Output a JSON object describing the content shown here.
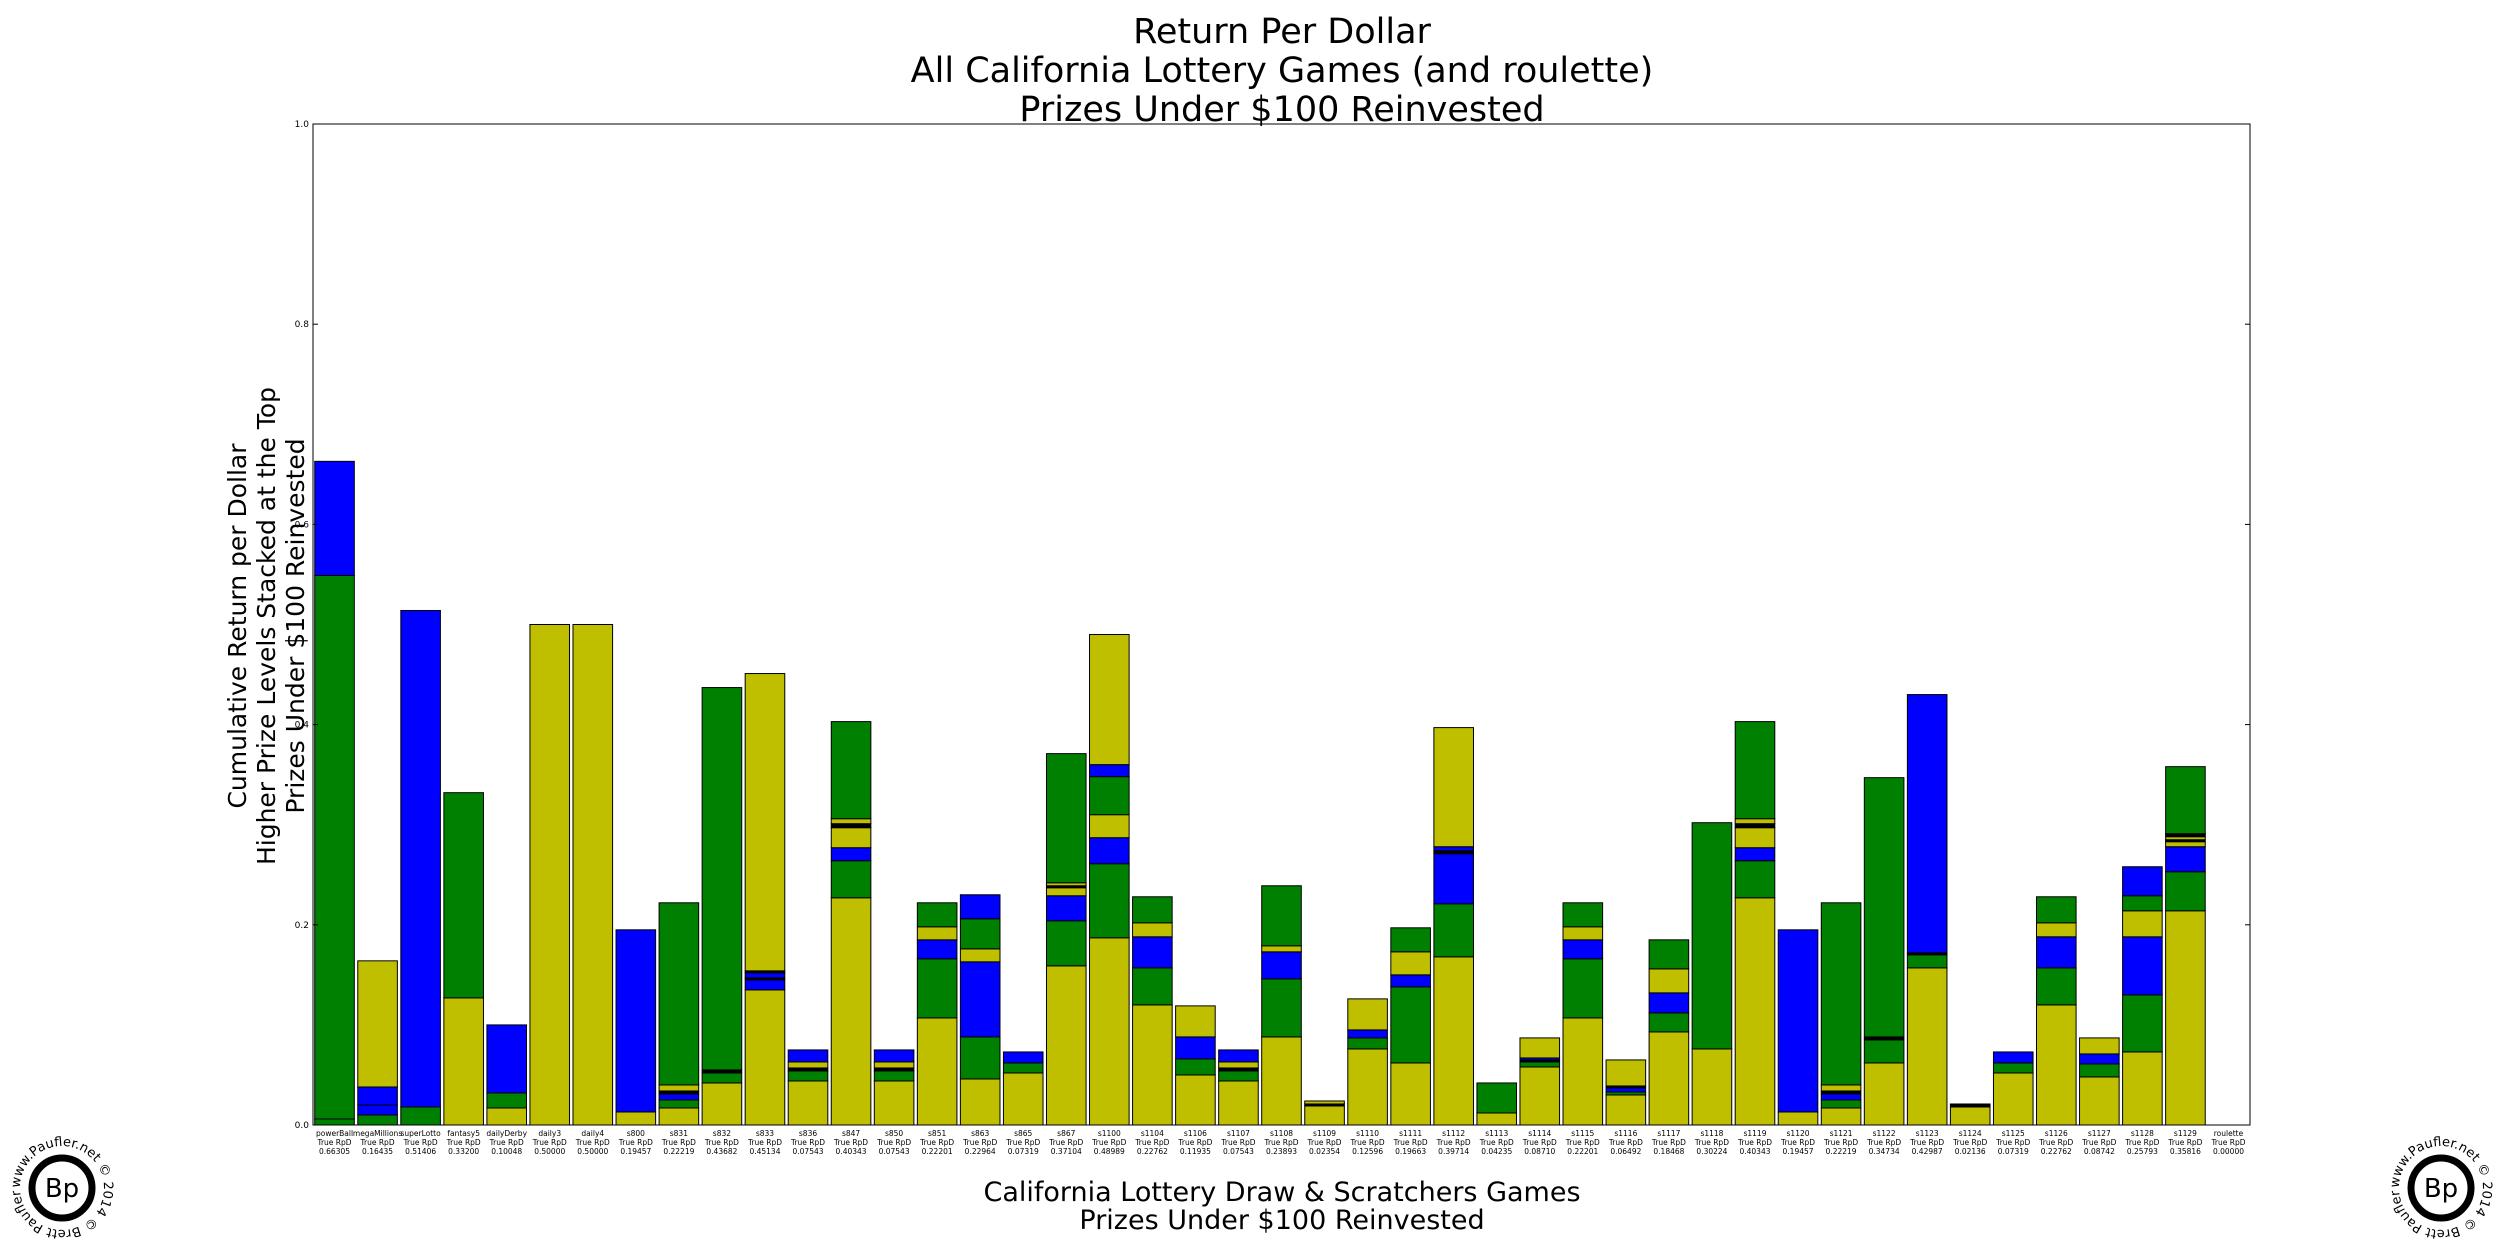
{
  "chart_data": {
    "type": "bar",
    "stacked": true,
    "title_lines": [
      "Return Per Dollar",
      "All California Lottery Games (and roulette)",
      "Prizes Under $100 Reinvested"
    ],
    "ylabel_lines": [
      "Cumulative Return per Dollar",
      "Higher Prize Levels Stacked at the Top",
      "Prizes Under $100 Reinvested"
    ],
    "xlabel_lines": [
      "California Lottery Draw & Scratchers Games",
      "Prizes Under $100 Reinvested"
    ],
    "ylim": [
      0,
      1
    ],
    "yticks": [
      "0.0",
      "0.2",
      "0.4",
      "0.6",
      "0.8",
      "1.0"
    ],
    "colors": {
      "y": "#bfbf00",
      "g": "#008000",
      "b": "#0000ff",
      "k": "#000000"
    },
    "grid": false,
    "categories": [
      {
        "name": "powerBall",
        "rpd_label": "True RpD",
        "rpd": "0.66305",
        "segments": [
          [
            "g",
            0.006
          ],
          [
            "g",
            0.543
          ],
          [
            "b",
            0.114
          ]
        ]
      },
      {
        "name": "megaMillions",
        "rpd_label": "True RpD",
        "rpd": "0.16435",
        "segments": [
          [
            "g",
            0.01
          ],
          [
            "b",
            0.01
          ],
          [
            "b",
            0.018
          ],
          [
            "y",
            0.126
          ]
        ]
      },
      {
        "name": "superLotto",
        "rpd_label": "True RpD",
        "rpd": "0.51406",
        "segments": [
          [
            "g",
            0.018
          ],
          [
            "b",
            0.496
          ]
        ]
      },
      {
        "name": "fantasy5",
        "rpd_label": "True RpD",
        "rpd": "0.33200",
        "segments": [
          [
            "y",
            0.127
          ],
          [
            "g",
            0.205
          ]
        ]
      },
      {
        "name": "dailyDerby",
        "rpd_label": "True RpD",
        "rpd": "0.10048",
        "segments": [
          [
            "y",
            0.017
          ],
          [
            "g",
            0.015
          ],
          [
            "b",
            0.068
          ]
        ]
      },
      {
        "name": "daily3",
        "rpd_label": "True RpD",
        "rpd": "0.50000",
        "segments": [
          [
            "y",
            0.5
          ]
        ]
      },
      {
        "name": "daily4",
        "rpd_label": "True RpD",
        "rpd": "0.50000",
        "segments": [
          [
            "y",
            0.5
          ]
        ]
      },
      {
        "name": "s800",
        "rpd_label": "True RpD",
        "rpd": "0.19457",
        "segments": [
          [
            "y",
            0.013
          ],
          [
            "b",
            0.182
          ]
        ]
      },
      {
        "name": "s831",
        "rpd_label": "True RpD",
        "rpd": "0.22219",
        "segments": [
          [
            "y",
            0.017
          ],
          [
            "g",
            0.008
          ],
          [
            "b",
            0.006
          ],
          [
            "k",
            0.003
          ],
          [
            "y",
            0.006
          ],
          [
            "g",
            0.182
          ]
        ]
      },
      {
        "name": "s832",
        "rpd_label": "True RpD",
        "rpd": "0.43682",
        "segments": [
          [
            "y",
            0.042
          ],
          [
            "g",
            0.01
          ],
          [
            "k",
            0.003
          ],
          [
            "g",
            0.382
          ]
        ]
      },
      {
        "name": "s833",
        "rpd_label": "True RpD",
        "rpd": "0.45134",
        "segments": [
          [
            "y",
            0.135
          ],
          [
            "b",
            0.01
          ],
          [
            "k",
            0.002
          ],
          [
            "b",
            0.005
          ],
          [
            "k",
            0.002
          ],
          [
            "y",
            0.297
          ]
        ]
      },
      {
        "name": "s836",
        "rpd_label": "True RpD",
        "rpd": "0.07543",
        "segments": [
          [
            "y",
            0.044
          ],
          [
            "g",
            0.01
          ],
          [
            "k",
            0.003
          ],
          [
            "y",
            0.006
          ],
          [
            "b",
            0.012
          ]
        ]
      },
      {
        "name": "s847",
        "rpd_label": "True RpD",
        "rpd": "0.40343",
        "segments": [
          [
            "y",
            0.227
          ],
          [
            "g",
            0.037
          ],
          [
            "b",
            0.013
          ],
          [
            "y",
            0.02
          ],
          [
            "k",
            0.004
          ],
          [
            "y",
            0.005
          ],
          [
            "g",
            0.097
          ]
        ]
      },
      {
        "name": "s850",
        "rpd_label": "True RpD",
        "rpd": "0.07543",
        "segments": [
          [
            "y",
            0.044
          ],
          [
            "g",
            0.01
          ],
          [
            "k",
            0.003
          ],
          [
            "y",
            0.006
          ],
          [
            "b",
            0.012
          ]
        ]
      },
      {
        "name": "s851",
        "rpd_label": "True RpD",
        "rpd": "0.22201",
        "segments": [
          [
            "y",
            0.107
          ],
          [
            "g",
            0.059
          ],
          [
            "b",
            0.019
          ],
          [
            "y",
            0.013
          ],
          [
            "g",
            0.024
          ]
        ]
      },
      {
        "name": "s863",
        "rpd_label": "True RpD",
        "rpd": "0.22964",
        "segments": [
          [
            "y",
            0.046
          ],
          [
            "g",
            0.042
          ],
          [
            "b",
            0.075
          ],
          [
            "y",
            0.013
          ],
          [
            "g",
            0.03
          ],
          [
            "b",
            0.024
          ]
        ]
      },
      {
        "name": "s865",
        "rpd_label": "True RpD",
        "rpd": "0.07319",
        "segments": [
          [
            "y",
            0.052
          ],
          [
            "g",
            0.01
          ],
          [
            "b",
            0.011
          ]
        ]
      },
      {
        "name": "s867",
        "rpd_label": "True RpD",
        "rpd": "0.37104",
        "segments": [
          [
            "y",
            0.159
          ],
          [
            "g",
            0.045
          ],
          [
            "b",
            0.025
          ],
          [
            "y",
            0.008
          ],
          [
            "k",
            0.002
          ],
          [
            "y",
            0.003
          ],
          [
            "g",
            0.129
          ]
        ]
      },
      {
        "name": "s1100",
        "rpd_label": "True RpD",
        "rpd": "0.48989",
        "segments": [
          [
            "y",
            0.187
          ],
          [
            "g",
            0.074
          ],
          [
            "b",
            0.026
          ],
          [
            "y",
            0.023
          ],
          [
            "g",
            0.038
          ],
          [
            "b",
            0.012
          ],
          [
            "y",
            0.13
          ]
        ]
      },
      {
        "name": "s1104",
        "rpd_label": "True RpD",
        "rpd": "0.22762",
        "segments": [
          [
            "y",
            0.12
          ],
          [
            "g",
            0.037
          ],
          [
            "b",
            0.031
          ],
          [
            "y",
            0.014
          ],
          [
            "g",
            0.026
          ]
        ]
      },
      {
        "name": "s1106",
        "rpd_label": "True RpD",
        "rpd": "0.11935",
        "segments": [
          [
            "y",
            0.05
          ],
          [
            "g",
            0.016
          ],
          [
            "b",
            0.022
          ],
          [
            "y",
            0.031
          ]
        ]
      },
      {
        "name": "s1107",
        "rpd_label": "True RpD",
        "rpd": "0.07543",
        "segments": [
          [
            "y",
            0.044
          ],
          [
            "g",
            0.01
          ],
          [
            "k",
            0.003
          ],
          [
            "y",
            0.006
          ],
          [
            "b",
            0.012
          ]
        ]
      },
      {
        "name": "s1108",
        "rpd_label": "True RpD",
        "rpd": "0.23893",
        "segments": [
          [
            "y",
            0.088
          ],
          [
            "g",
            0.058
          ],
          [
            "b",
            0.027
          ],
          [
            "y",
            0.006
          ],
          [
            "g",
            0.06
          ]
        ]
      },
      {
        "name": "s1109",
        "rpd_label": "True RpD",
        "rpd": "0.02354",
        "segments": [
          [
            "y",
            0.019
          ],
          [
            "k",
            0.002
          ],
          [
            "y",
            0.003
          ]
        ]
      },
      {
        "name": "s1110",
        "rpd_label": "True RpD",
        "rpd": "0.12596",
        "segments": [
          [
            "y",
            0.076
          ],
          [
            "g",
            0.011
          ],
          [
            "b",
            0.008
          ],
          [
            "y",
            0.031
          ]
        ]
      },
      {
        "name": "s1111",
        "rpd_label": "True RpD",
        "rpd": "0.19663",
        "segments": [
          [
            "y",
            0.062
          ],
          [
            "g",
            0.076
          ],
          [
            "b",
            0.012
          ],
          [
            "y",
            0.023
          ],
          [
            "g",
            0.024
          ]
        ]
      },
      {
        "name": "s1112",
        "rpd_label": "True RpD",
        "rpd": "0.39714",
        "segments": [
          [
            "y",
            0.168
          ],
          [
            "g",
            0.053
          ],
          [
            "b",
            0.05
          ],
          [
            "k",
            0.003
          ],
          [
            "b",
            0.004
          ],
          [
            "y",
            0.119
          ]
        ]
      },
      {
        "name": "s1113",
        "rpd_label": "True RpD",
        "rpd": "0.04235",
        "segments": [
          [
            "y",
            0.012
          ],
          [
            "g",
            0.03
          ]
        ]
      },
      {
        "name": "s1114",
        "rpd_label": "True RpD",
        "rpd": "0.08710",
        "segments": [
          [
            "y",
            0.058
          ],
          [
            "g",
            0.005
          ],
          [
            "k",
            0.002
          ],
          [
            "b",
            0.002
          ],
          [
            "y",
            0.02
          ]
        ]
      },
      {
        "name": "s1115",
        "rpd_label": "True RpD",
        "rpd": "0.22201",
        "segments": [
          [
            "y",
            0.107
          ],
          [
            "g",
            0.059
          ],
          [
            "b",
            0.019
          ],
          [
            "y",
            0.013
          ],
          [
            "g",
            0.024
          ]
        ]
      },
      {
        "name": "s1116",
        "rpd_label": "True RpD",
        "rpd": "0.06492",
        "segments": [
          [
            "y",
            0.03
          ],
          [
            "g",
            0.003
          ],
          [
            "b",
            0.004
          ],
          [
            "k",
            0.002
          ],
          [
            "y",
            0.026
          ]
        ]
      },
      {
        "name": "s1117",
        "rpd_label": "True RpD",
        "rpd": "0.18468",
        "segments": [
          [
            "y",
            0.093
          ],
          [
            "g",
            0.019
          ],
          [
            "b",
            0.02
          ],
          [
            "y",
            0.024
          ],
          [
            "g",
            0.029
          ]
        ]
      },
      {
        "name": "s1118",
        "rpd_label": "True RpD",
        "rpd": "0.30224",
        "segments": [
          [
            "y",
            0.076
          ],
          [
            "g",
            0.226
          ]
        ]
      },
      {
        "name": "s1119",
        "rpd_label": "True RpD",
        "rpd": "0.40343",
        "segments": [
          [
            "y",
            0.227
          ],
          [
            "g",
            0.037
          ],
          [
            "b",
            0.013
          ],
          [
            "y",
            0.02
          ],
          [
            "k",
            0.004
          ],
          [
            "y",
            0.005
          ],
          [
            "g",
            0.097
          ]
        ]
      },
      {
        "name": "s1120",
        "rpd_label": "True RpD",
        "rpd": "0.19457",
        "segments": [
          [
            "y",
            0.013
          ],
          [
            "b",
            0.182
          ]
        ]
      },
      {
        "name": "s1121",
        "rpd_label": "True RpD",
        "rpd": "0.22219",
        "segments": [
          [
            "y",
            0.017
          ],
          [
            "g",
            0.008
          ],
          [
            "b",
            0.006
          ],
          [
            "k",
            0.003
          ],
          [
            "y",
            0.006
          ],
          [
            "g",
            0.182
          ]
        ]
      },
      {
        "name": "s1122",
        "rpd_label": "True RpD",
        "rpd": "0.34734",
        "segments": [
          [
            "y",
            0.062
          ],
          [
            "g",
            0.023
          ],
          [
            "k",
            0.003
          ],
          [
            "g",
            0.259
          ]
        ]
      },
      {
        "name": "s1123",
        "rpd_label": "True RpD",
        "rpd": "0.42987",
        "segments": [
          [
            "y",
            0.157
          ],
          [
            "g",
            0.013
          ],
          [
            "k",
            0.002
          ],
          [
            "b",
            0.258
          ]
        ]
      },
      {
        "name": "s1124",
        "rpd_label": "True RpD",
        "rpd": "0.02136",
        "segments": [
          [
            "y",
            0.018
          ],
          [
            "k",
            0.002
          ],
          [
            "y",
            0.001
          ]
        ]
      },
      {
        "name": "s1125",
        "rpd_label": "True RpD",
        "rpd": "0.07319",
        "segments": [
          [
            "y",
            0.052
          ],
          [
            "g",
            0.01
          ],
          [
            "b",
            0.011
          ]
        ]
      },
      {
        "name": "s1126",
        "rpd_label": "True RpD",
        "rpd": "0.22762",
        "segments": [
          [
            "y",
            0.12
          ],
          [
            "g",
            0.037
          ],
          [
            "b",
            0.031
          ],
          [
            "y",
            0.014
          ],
          [
            "g",
            0.026
          ]
        ]
      },
      {
        "name": "s1127",
        "rpd_label": "True RpD",
        "rpd": "0.08742",
        "segments": [
          [
            "y",
            0.048
          ],
          [
            "g",
            0.013
          ],
          [
            "b",
            0.01
          ],
          [
            "y",
            0.016
          ]
        ]
      },
      {
        "name": "s1128",
        "rpd_label": "True RpD",
        "rpd": "0.25793",
        "segments": [
          [
            "y",
            0.073
          ],
          [
            "g",
            0.057
          ],
          [
            "b",
            0.058
          ],
          [
            "y",
            0.026
          ],
          [
            "g",
            0.015
          ],
          [
            "b",
            0.029
          ]
        ]
      },
      {
        "name": "s1129",
        "rpd_label": "True RpD",
        "rpd": "0.35816",
        "segments": [
          [
            "y",
            0.214
          ],
          [
            "g",
            0.039
          ],
          [
            "b",
            0.025
          ],
          [
            "y",
            0.005
          ],
          [
            "k",
            0.002
          ],
          [
            "y",
            0.003
          ],
          [
            "k",
            0.002
          ],
          [
            "y",
            0.001
          ],
          [
            "g",
            0.067
          ]
        ]
      },
      {
        "name": "roulette",
        "rpd_label": "True RpD",
        "rpd": "0.00000",
        "segments": []
      }
    ]
  },
  "watermark": {
    "logo_text": "Bp",
    "ring_text": "www.Paufler.net © 2014 © Brett Paufler © "
  }
}
